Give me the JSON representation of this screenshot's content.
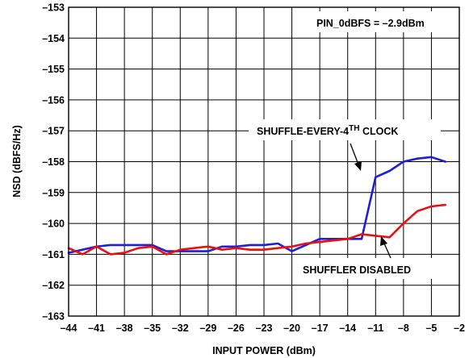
{
  "chart_data": {
    "type": "line",
    "xlabel": "INPUT POWER (dBm)",
    "ylabel": "NSD (dBFS/Hz)",
    "xlim": [
      -44,
      -2
    ],
    "ylim": [
      -163,
      -153
    ],
    "xticks": [
      "–44",
      "–41",
      "–38",
      "–35",
      "–32",
      "–29",
      "–26",
      "–23",
      "–20",
      "–17",
      "–14",
      "–11",
      "–8",
      "–5",
      "–2"
    ],
    "yticks": [
      "–153",
      "–154",
      "–155",
      "–156",
      "–157",
      "–158",
      "–159",
      "–160",
      "–161",
      "–162",
      "–163"
    ],
    "grid": true,
    "series": [
      {
        "name": "SHUFFLE-EVERY-4TH CLOCK",
        "color": "#1f1fd6",
        "x": [
          -44,
          -42.5,
          -41,
          -39.5,
          -38,
          -36.5,
          -35,
          -33.5,
          -32,
          -30.5,
          -29,
          -27.5,
          -26,
          -24.5,
          -23,
          -21.5,
          -20,
          -18.5,
          -17,
          -15.5,
          -14,
          -12.5,
          -11,
          -9.5,
          -8,
          -6.5,
          -5,
          -3.5
        ],
        "values": [
          -160.95,
          -160.85,
          -160.75,
          -160.7,
          -160.7,
          -160.7,
          -160.7,
          -160.9,
          -160.9,
          -160.9,
          -160.9,
          -160.75,
          -160.75,
          -160.7,
          -160.7,
          -160.65,
          -160.9,
          -160.7,
          -160.5,
          -160.5,
          -160.5,
          -160.5,
          -158.5,
          -158.3,
          -158.0,
          -157.9,
          -157.85,
          -158.0
        ]
      },
      {
        "name": "SHUFFLER DISABLED",
        "color": "#e81010",
        "x": [
          -44,
          -42.5,
          -41,
          -39.5,
          -38,
          -36.5,
          -35,
          -33.5,
          -32,
          -30.5,
          -29,
          -27.5,
          -26,
          -24.5,
          -23,
          -21.5,
          -20,
          -18.5,
          -17,
          -15.5,
          -14,
          -12.5,
          -11,
          -9.5,
          -8,
          -6.5,
          -5,
          -3.5
        ],
        "values": [
          -160.8,
          -161.0,
          -160.75,
          -161.0,
          -160.95,
          -160.8,
          -160.75,
          -161.0,
          -160.85,
          -160.8,
          -160.75,
          -160.85,
          -160.8,
          -160.85,
          -160.85,
          -160.8,
          -160.75,
          -160.65,
          -160.6,
          -160.55,
          -160.5,
          -160.35,
          -160.4,
          -160.45,
          -160.0,
          -159.6,
          -159.45,
          -159.4
        ]
      }
    ],
    "annotations": {
      "pin": "PIN_0dBFS = –2.9dBm",
      "shuffle_label": "SHUFFLE-EVERY-4",
      "shuffle_sup": "TH",
      "shuffle_suffix": " CLOCK",
      "disabled_label": "SHUFFLER DISABLED"
    }
  }
}
